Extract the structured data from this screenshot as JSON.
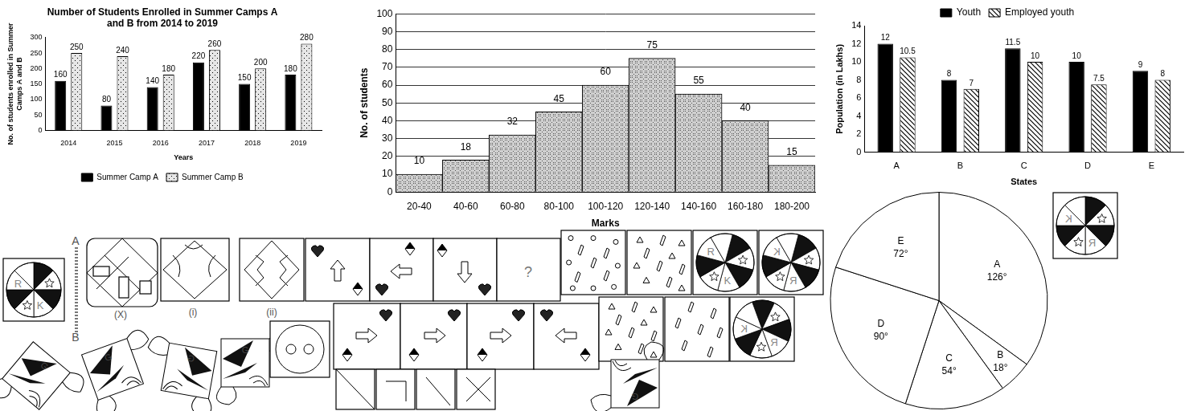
{
  "chart_data": [
    {
      "type": "bar",
      "title": [
        "Number of Students Enrolled in Summer Camps A",
        "and B from 2014 to 2019"
      ],
      "x_label": "Years",
      "y_label": [
        "No. of students enrolled in Summer",
        "Camps A and B"
      ],
      "categories": [
        "2014",
        "2015",
        "2016",
        "2017",
        "2018",
        "2019"
      ],
      "series": [
        {
          "name": "Summer Camp A",
          "color": "#000000",
          "values": [
            160,
            80,
            140,
            220,
            150,
            180
          ]
        },
        {
          "name": "Summer Camp B",
          "color": "#e6e6e6",
          "values": [
            250,
            240,
            180,
            260,
            200,
            280
          ]
        }
      ],
      "ylim": [
        0,
        300
      ],
      "yticks": [
        0,
        50,
        100,
        150,
        200,
        250,
        300
      ],
      "grid": false,
      "legend": "bottom",
      "data_labels": true
    },
    {
      "type": "histogram",
      "x_label": "Marks",
      "y_label": "No. of students",
      "categories": [
        "20-40",
        "40-60",
        "60-80",
        "80-100",
        "100-120",
        "120-140",
        "140-160",
        "160-180",
        "180-200"
      ],
      "values": [
        10,
        18,
        32,
        45,
        60,
        75,
        55,
        40,
        15
      ],
      "color": "#d0d0d0",
      "ylim": [
        0,
        100
      ],
      "yticks": [
        0,
        10,
        20,
        30,
        40,
        50,
        60,
        70,
        80,
        90,
        100
      ],
      "grid": true,
      "data_labels": true
    },
    {
      "type": "bar",
      "x_label": "States",
      "y_label": "Population (in Lakhs)",
      "categories": [
        "A",
        "B",
        "C",
        "D",
        "E"
      ],
      "series": [
        {
          "name": "Youth",
          "color": "#000000",
          "values": [
            12,
            8,
            11.5,
            10,
            9
          ]
        },
        {
          "name": "Employed youth",
          "color": "#ffffff",
          "values": [
            10.5,
            7,
            10,
            7.5,
            8
          ]
        }
      ],
      "ylim": [
        0,
        14
      ],
      "yticks": [
        0,
        2,
        4,
        6,
        8,
        10,
        12,
        14
      ],
      "grid": false,
      "legend": "top",
      "data_labels": true
    },
    {
      "type": "pie",
      "categories": [
        "A",
        "B",
        "C",
        "D",
        "E"
      ],
      "values": [
        126,
        18,
        54,
        90,
        72
      ],
      "value_labels": [
        "126°",
        "18°",
        "54°",
        "90°",
        "72°"
      ],
      "color": "#ffffff",
      "data_labels": true
    }
  ],
  "figure_texts": {
    "mirror_labels": [
      "A",
      "B"
    ],
    "figure_labels": [
      "(X)",
      "(i)",
      "(ii)"
    ],
    "question_mark": "?",
    "letters": [
      "R",
      "K",
      "G"
    ]
  }
}
